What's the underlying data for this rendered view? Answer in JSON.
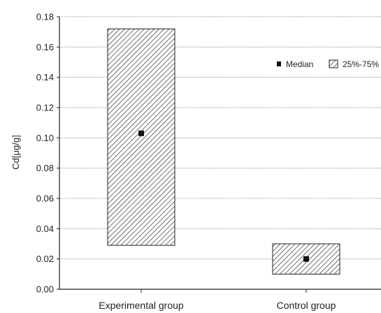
{
  "chart_data": {
    "type": "box",
    "ylabel": "Cd[μg/g]",
    "ylim": [
      0,
      0.18
    ],
    "y_ticks": [
      "0.00",
      "0.02",
      "0.04",
      "0.06",
      "0.08",
      "0.10",
      "0.12",
      "0.14",
      "0.16",
      "0.18"
    ],
    "grid": "horizontal dotted",
    "legend_placement": "top-right",
    "legend": {
      "median_label": "Median",
      "range_label": "25%-75%"
    },
    "categories": [
      "Experimental group",
      "Control group"
    ],
    "boxes": [
      {
        "category": "Experimental group",
        "q1": 0.029,
        "q3": 0.172,
        "median": 0.103
      },
      {
        "category": "Control group",
        "q1": 0.01,
        "q3": 0.03,
        "median": 0.02
      }
    ],
    "colors": {
      "hatch": "#333333",
      "frame": "#222222",
      "grid": "#999999",
      "marker": "#111111"
    }
  }
}
